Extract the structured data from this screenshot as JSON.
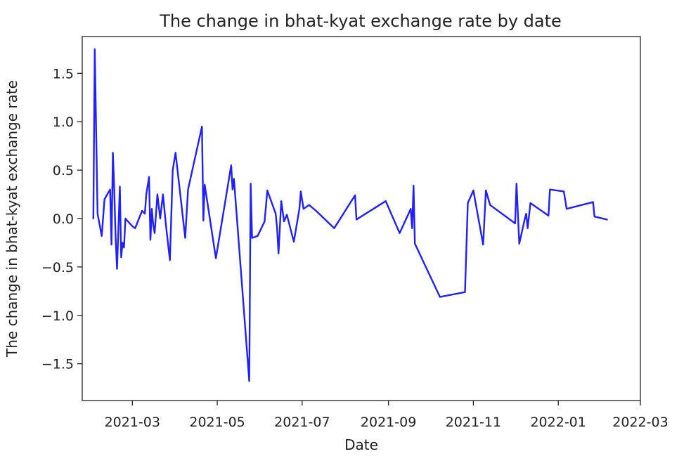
{
  "chart_data": {
    "type": "line",
    "title": "The change in bhat-kyat exchange rate by date",
    "xlabel": "Date",
    "ylabel": "The change in bhat-kyat exchange rate",
    "x_ticks": [
      "2021-03",
      "2021-05",
      "2021-07",
      "2021-09",
      "2021-11",
      "2022-01",
      "2022-03"
    ],
    "y_ticks": [
      "1.5",
      "1.0",
      "0.5",
      "0.0",
      "−0.5",
      "−1.0",
      "−1.5"
    ],
    "y_tick_values": [
      1.5,
      1.0,
      0.5,
      0.0,
      -0.5,
      -1.0,
      -1.5
    ],
    "xlim": [
      "2021-01-24",
      "2022-03-01"
    ],
    "ylim": [
      -1.88,
      1.88
    ],
    "grid": false,
    "legend": "none",
    "series": [
      {
        "color": "#1f1fff",
        "x": [
          "2021-02-01",
          "2021-02-02",
          "2021-02-04",
          "2021-02-07",
          "2021-02-09",
          "2021-02-13",
          "2021-02-14",
          "2021-02-15",
          "2021-02-16",
          "2021-02-17",
          "2021-02-18",
          "2021-02-20",
          "2021-02-21",
          "2021-02-22",
          "2021-02-23",
          "2021-02-24",
          "2021-03-01",
          "2021-03-03",
          "2021-03-08",
          "2021-03-10",
          "2021-03-11",
          "2021-03-13",
          "2021-03-14",
          "2021-03-15",
          "2021-03-16",
          "2021-03-17",
          "2021-03-19",
          "2021-03-21",
          "2021-03-23",
          "2021-03-25",
          "2021-03-28",
          "2021-03-30",
          "2021-04-01",
          "2021-04-08",
          "2021-04-10",
          "2021-04-20",
          "2021-04-21",
          "2021-04-22",
          "2021-04-30",
          "2021-05-11",
          "2021-05-12",
          "2021-05-13",
          "2021-05-24",
          "2021-05-25",
          "2021-05-26",
          "2021-05-30",
          "2021-06-04",
          "2021-06-06",
          "2021-06-12",
          "2021-06-13",
          "2021-06-14",
          "2021-06-16",
          "2021-06-18",
          "2021-06-20",
          "2021-06-25",
          "2021-06-29",
          "2021-06-30",
          "2021-07-02",
          "2021-07-06",
          "2021-07-11",
          "2021-07-24",
          "2021-08-08",
          "2021-08-09",
          "2021-08-30",
          "2021-09-09",
          "2021-09-17",
          "2021-09-18",
          "2021-09-19",
          "2021-09-20",
          "2021-10-08",
          "2021-10-26",
          "2021-10-28",
          "2021-11-01",
          "2021-11-08",
          "2021-11-10",
          "2021-11-13",
          "2021-12-01",
          "2021-12-02",
          "2021-12-04",
          "2021-12-08",
          "2021-12-09",
          "2021-12-10",
          "2021-12-12",
          "2021-12-25",
          "2021-12-26",
          "2022-01-05",
          "2022-01-07",
          "2022-01-26",
          "2022-01-27",
          "2022-02-05"
        ],
        "y": [
          0.0,
          1.75,
          0.05,
          -0.18,
          0.2,
          0.3,
          -0.27,
          0.68,
          0.3,
          -0.2,
          -0.52,
          0.33,
          -0.4,
          -0.25,
          -0.3,
          0.0,
          -0.08,
          -0.1,
          0.08,
          0.05,
          0.25,
          0.43,
          -0.22,
          0.1,
          -0.07,
          -0.15,
          0.25,
          0.0,
          0.25,
          -0.05,
          -0.43,
          0.5,
          0.68,
          -0.2,
          0.3,
          0.95,
          -0.02,
          0.35,
          -0.41,
          0.55,
          0.3,
          0.41,
          -1.68,
          0.36,
          -0.2,
          -0.18,
          -0.03,
          0.29,
          0.05,
          -0.1,
          -0.36,
          0.18,
          -0.03,
          0.04,
          -0.24,
          0.1,
          0.28,
          0.1,
          0.14,
          0.08,
          -0.1,
          0.24,
          -0.01,
          0.18,
          -0.15,
          0.1,
          -0.1,
          0.34,
          -0.26,
          -0.81,
          -0.76,
          0.16,
          0.29,
          -0.27,
          0.29,
          0.14,
          -0.05,
          0.36,
          -0.26,
          0.0,
          0.05,
          -0.1,
          0.16,
          0.03,
          0.3,
          0.28,
          0.1,
          0.17,
          0.02,
          -0.01
        ]
      }
    ]
  }
}
